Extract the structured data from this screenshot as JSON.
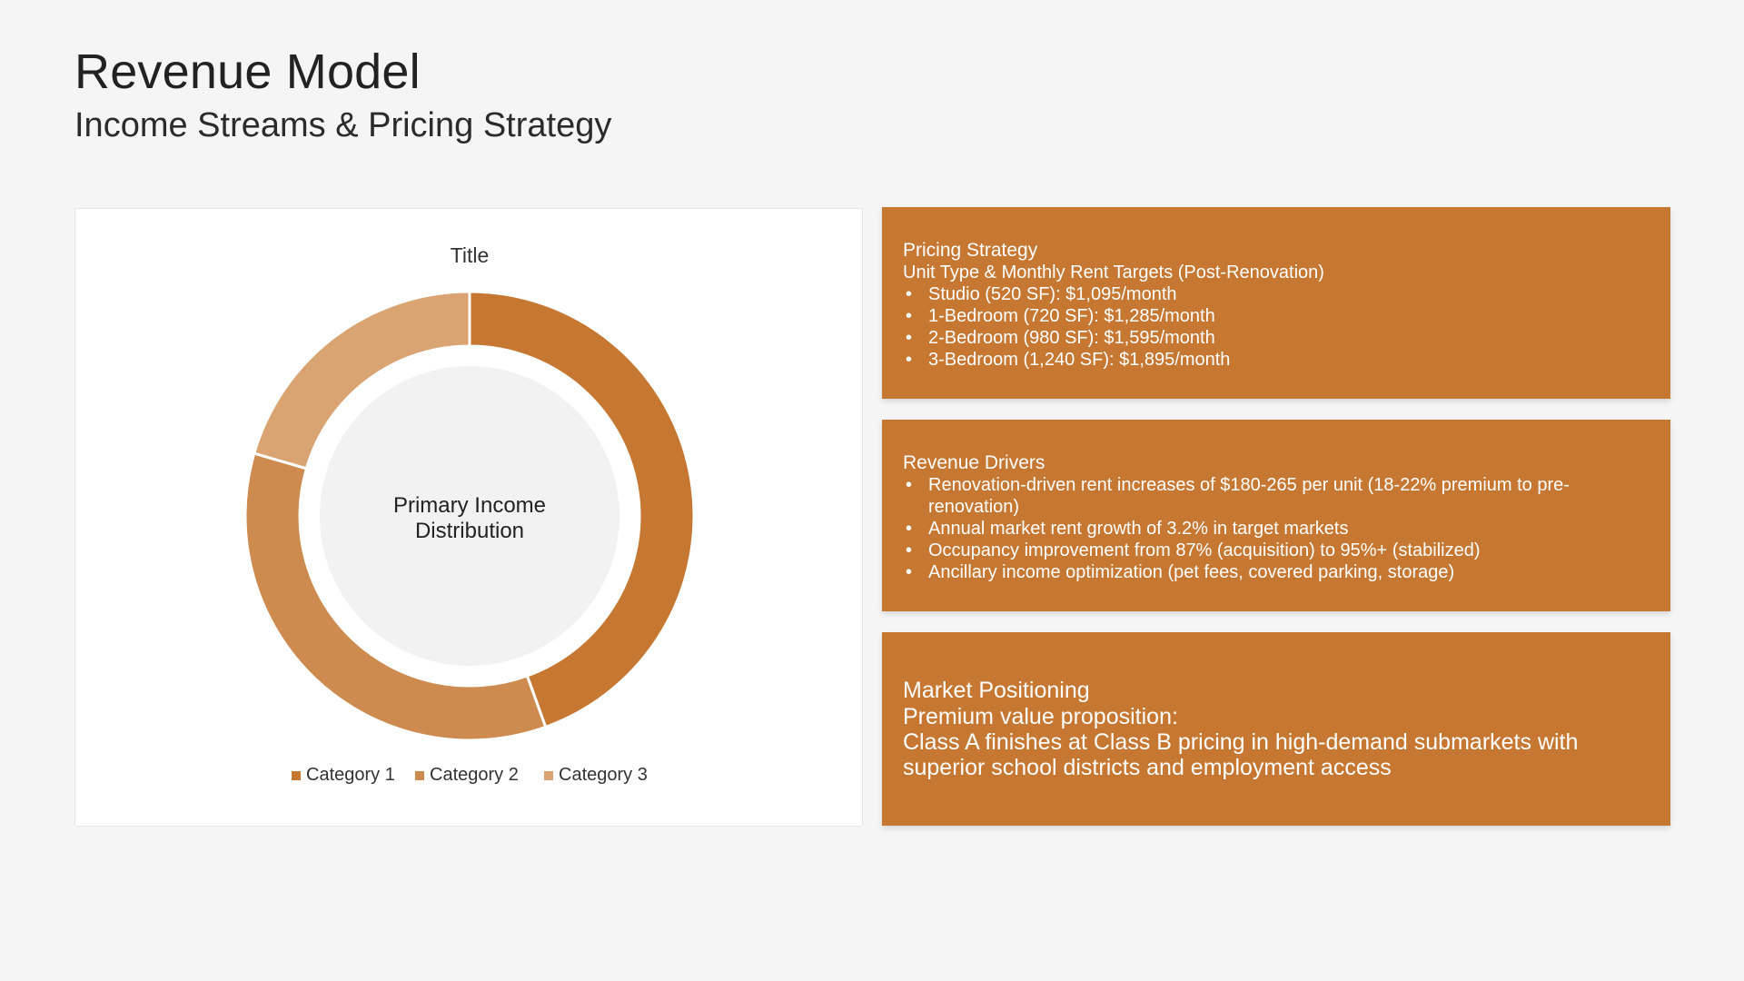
{
  "header": {
    "title": "Revenue Model",
    "subtitle": "Income Streams & Pricing Strategy"
  },
  "chart_data": {
    "type": "pie",
    "donut": true,
    "title": "Title",
    "center_label": [
      "Primary Income",
      "Distribution"
    ],
    "categories": [
      "Category 1",
      "Category 2",
      "Category 3"
    ],
    "values": [
      44.5,
      35,
      20.5
    ],
    "colors": [
      "#c67833",
      "#cd8b50",
      "#d9a472"
    ],
    "legend": "bottom"
  },
  "cards": {
    "pricing": {
      "title": "Pricing Strategy",
      "subtitle": "Unit Type & Monthly Rent Targets (Post-Renovation)",
      "items": [
        "Studio (520 SF): $1,095/month",
        "1-Bedroom (720 SF): $1,285/month",
        "2-Bedroom (980 SF): $1,595/month",
        "3-Bedroom (1,240 SF): $1,895/month"
      ]
    },
    "drivers": {
      "title": "Revenue Drivers",
      "items": [
        "Renovation-driven rent increases of $180-265 per unit (18-22% premium to pre-renovation)",
        "Annual market rent growth of 3.2% in target markets",
        "Occupancy improvement from 87% (acquisition) to 95%+ (stabilized)",
        "Ancillary income optimization (pet fees, covered parking, storage)"
      ]
    },
    "market": {
      "title": "Market Positioning",
      "line1": "Premium value proposition:",
      "line2": "Class A finishes at Class B pricing in high-demand submarkets with superior school districts and employment access"
    }
  },
  "colors": {
    "accent": "#c67833",
    "background": "#f5f5f5"
  }
}
